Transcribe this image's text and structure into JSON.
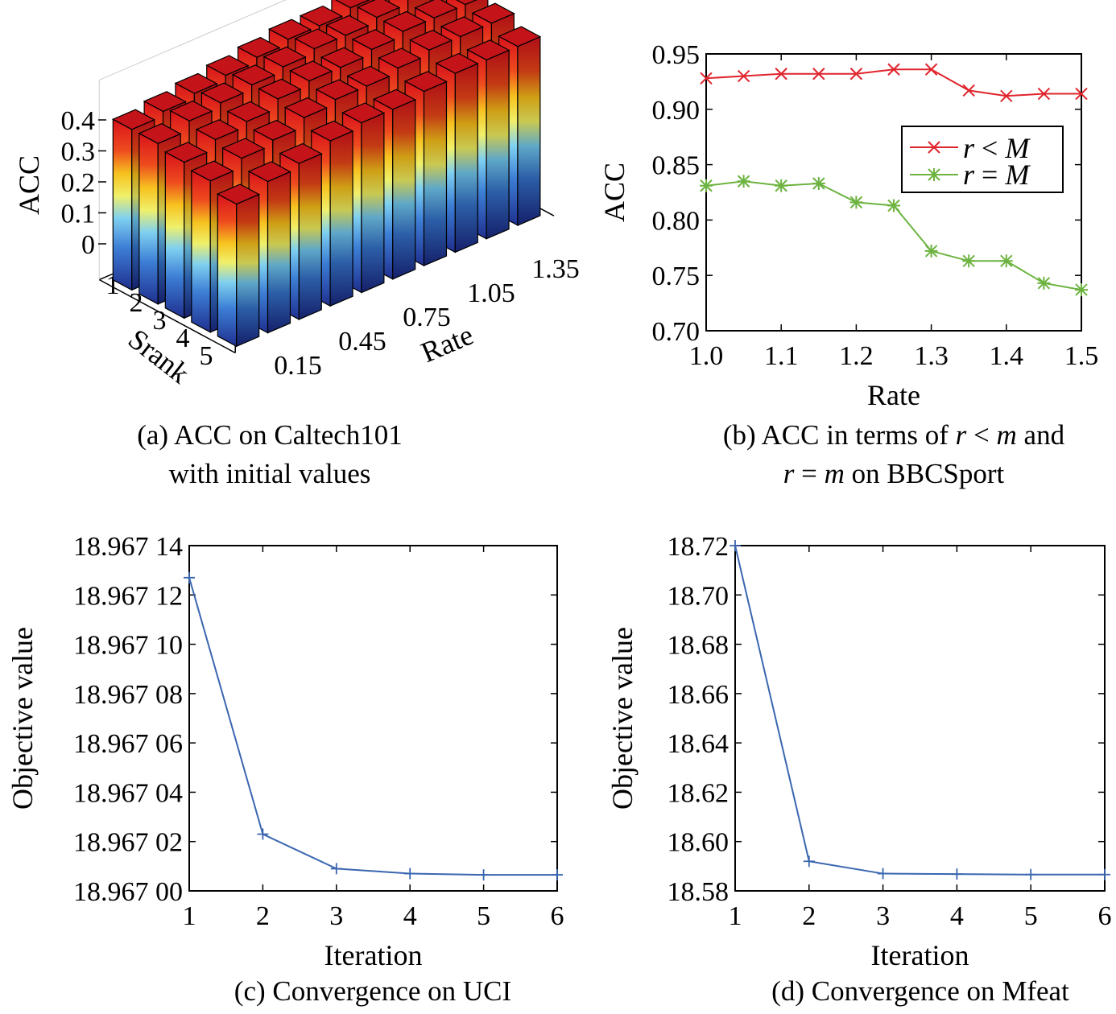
{
  "colors": {
    "red_series": "#e0242c",
    "green_series": "#6cb33f",
    "blue_series": "#3a66b0"
  },
  "panels": {
    "a": {
      "caption_line1": "(a) ACC on Caltech101",
      "caption_line2": "with initial values",
      "zlabel": "ACC",
      "xlabel": "Rate",
      "ylabel": "Srank",
      "z_ticks": [
        "0",
        "0.1",
        "0.2",
        "0.3",
        "0.4"
      ],
      "x_ticks": [
        "0.15",
        "0.45",
        "0.75",
        "1.05",
        "1.35"
      ],
      "y_ticks": [
        "1",
        "2",
        "3",
        "4",
        "5"
      ]
    },
    "b": {
      "caption_line1_pre": "(b) ACC in terms of ",
      "caption_line1_var": "r",
      "caption_line1_mid": " < ",
      "caption_line1_var2": "m",
      "caption_line1_post": " and",
      "caption_line2_var": "r",
      "caption_line2_mid": " = ",
      "caption_line2_var2": "m",
      "caption_line2_post": " on BBCSport",
      "legend": [
        {
          "var": "r",
          "op": " < ",
          "var2": "M"
        },
        {
          "var": "r",
          "op": " = ",
          "var2": "M"
        }
      ]
    },
    "c": {
      "caption": "(c) Convergence on UCI"
    },
    "d": {
      "caption": "(d) Convergence on Mfeat"
    }
  },
  "chart_data": [
    {
      "id": "a",
      "type": "bar3d",
      "zlabel": "ACC",
      "xlabel": "Rate",
      "ylabel": "Srank",
      "x": [
        0.15,
        0.3,
        0.45,
        0.6,
        0.75,
        0.9,
        1.05,
        1.2,
        1.35,
        1.5
      ],
      "y": [
        1,
        2,
        3,
        4,
        5
      ],
      "zlim": [
        0,
        0.4
      ],
      "values": [
        [
          0.35,
          0.36,
          0.37,
          0.38,
          0.39,
          0.4,
          0.4,
          0.41,
          0.42,
          0.43
        ],
        [
          0.35,
          0.37,
          0.38,
          0.39,
          0.4,
          0.41,
          0.41,
          0.42,
          0.43,
          0.43
        ],
        [
          0.34,
          0.36,
          0.37,
          0.39,
          0.4,
          0.4,
          0.41,
          0.42,
          0.42,
          0.42
        ],
        [
          0.33,
          0.35,
          0.36,
          0.38,
          0.39,
          0.39,
          0.4,
          0.41,
          0.41,
          0.41
        ],
        [
          0.31,
          0.33,
          0.34,
          0.36,
          0.37,
          0.37,
          0.38,
          0.39,
          0.39,
          0.39
        ]
      ]
    },
    {
      "id": "b",
      "type": "line",
      "xlabel": "Rate",
      "ylabel": "ACC",
      "xlim": [
        1.0,
        1.5
      ],
      "ylim": [
        0.7,
        0.95
      ],
      "x_ticks": [
        "1.0",
        "1.1",
        "1.2",
        "1.3",
        "1.4",
        "1.5"
      ],
      "y_ticks": [
        "0.70",
        "0.75",
        "0.80",
        "0.85",
        "0.90",
        "0.95"
      ],
      "x": [
        1.0,
        1.05,
        1.1,
        1.15,
        1.2,
        1.25,
        1.3,
        1.35,
        1.4,
        1.45,
        1.5
      ],
      "series": [
        {
          "values": [
            0.928,
            0.93,
            0.932,
            0.932,
            0.932,
            0.936,
            0.936,
            0.917,
            0.912,
            0.914,
            0.914
          ],
          "color": "#e0242c",
          "marker": "x"
        },
        {
          "values": [
            0.831,
            0.835,
            0.831,
            0.833,
            0.816,
            0.813,
            0.772,
            0.763,
            0.763,
            0.743,
            0.737
          ],
          "color": "#6cb33f",
          "marker": "star"
        }
      ],
      "legend_position": "middle-right"
    },
    {
      "id": "c",
      "type": "line",
      "xlabel": "Iteration",
      "ylabel": "Objective value",
      "xlim": [
        1,
        6
      ],
      "ylim": [
        18.967,
        18.96714
      ],
      "x_ticks": [
        "1",
        "2",
        "3",
        "4",
        "5",
        "6"
      ],
      "y_ticks": [
        "18.967 00",
        "18.967 02",
        "18.967 04",
        "18.967 06",
        "18.967 08",
        "18.967 10",
        "18.967 12",
        "18.967 14"
      ],
      "x": [
        1,
        2,
        3,
        4,
        5,
        6
      ],
      "series": [
        {
          "values": [
            18.967127,
            18.967023,
            18.967009,
            18.967007,
            18.9670065,
            18.9670065
          ],
          "color": "#3a66b0",
          "marker": "plus"
        }
      ]
    },
    {
      "id": "d",
      "type": "line",
      "xlabel": "Iteration",
      "ylabel": "Objective value",
      "xlim": [
        1,
        6
      ],
      "ylim": [
        18.58,
        18.72
      ],
      "x_ticks": [
        "1",
        "2",
        "3",
        "4",
        "5",
        "6"
      ],
      "y_ticks": [
        "18.58",
        "18.60",
        "18.62",
        "18.64",
        "18.66",
        "18.68",
        "18.70",
        "18.72"
      ],
      "x": [
        1,
        2,
        3,
        4,
        5,
        6
      ],
      "series": [
        {
          "values": [
            18.72,
            18.592,
            18.587,
            18.5868,
            18.5866,
            18.5866
          ],
          "color": "#3a66b0",
          "marker": "plus"
        }
      ]
    }
  ]
}
